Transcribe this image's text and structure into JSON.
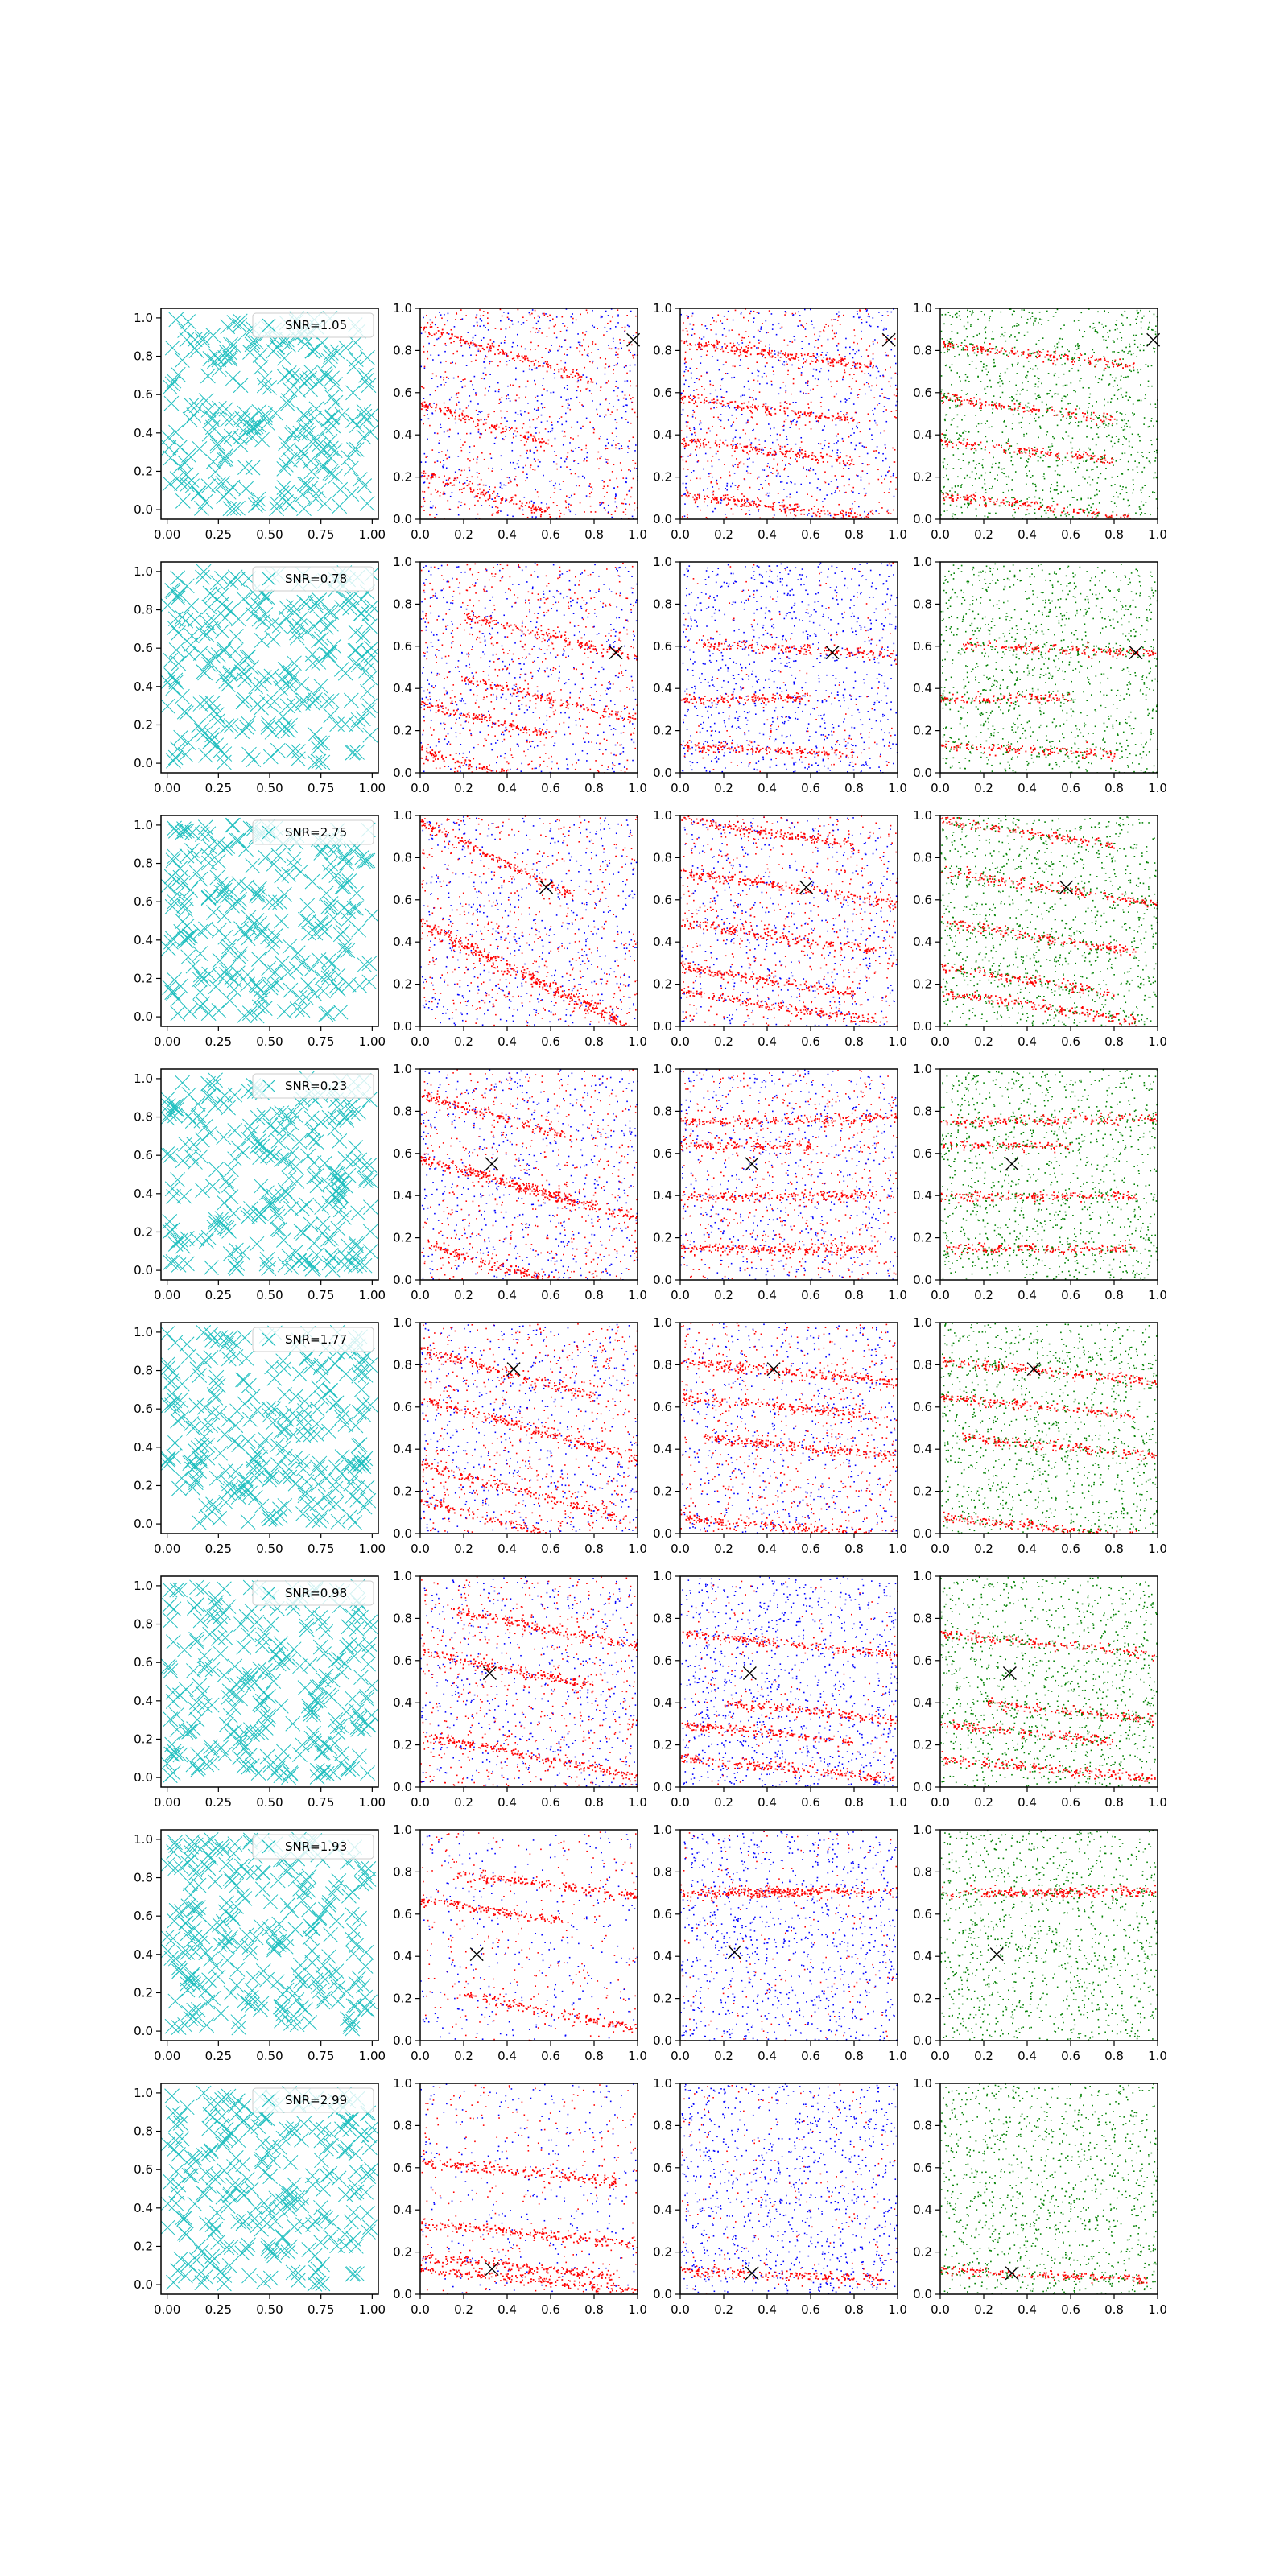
{
  "figure": {
    "rows": 8,
    "cols": 4,
    "grid": false,
    "colors": {
      "cross": "#1fbfbf",
      "red": "#ff0000",
      "blue": "#0000ff",
      "green": "#008000",
      "marker": "#000000",
      "axes": "#000000"
    }
  },
  "chart_data": [
    {
      "type": "scatter",
      "panel": "random-cross-markers",
      "xlim": [
        -0.03,
        1.03
      ],
      "ylim": [
        -0.05,
        1.05
      ],
      "xticks": [
        "0.00",
        "0.25",
        "0.50",
        "0.75",
        "1.00"
      ],
      "yticks": [
        "0.0",
        "0.2",
        "0.4",
        "0.6",
        "0.8",
        "1.0"
      ],
      "legend_location": "upper right",
      "legends": [
        "SNR=1.05",
        "SNR=0.78",
        "SNR=2.75",
        "SNR=0.23",
        "SNR=1.77",
        "SNR=0.98",
        "SNR=1.93",
        "SNR=2.99"
      ]
    },
    {
      "type": "scatter",
      "panel": "red-blue-points",
      "xlim": [
        0,
        1
      ],
      "ylim": [
        0,
        1
      ],
      "xticks": [
        "0.0",
        "0.2",
        "0.4",
        "0.6",
        "0.8",
        "1.0"
      ],
      "yticks": [
        "0.0",
        "0.2",
        "0.4",
        "0.6",
        "0.8",
        "1.0"
      ]
    },
    {
      "type": "scatter",
      "panel": "red-blue-points",
      "xlim": [
        0,
        1
      ],
      "ylim": [
        0,
        1
      ],
      "xticks": [
        "0.0",
        "0.2",
        "0.4",
        "0.6",
        "0.8",
        "1.0"
      ],
      "yticks": [
        "0.0",
        "0.2",
        "0.4",
        "0.6",
        "0.8",
        "1.0"
      ]
    },
    {
      "type": "scatter",
      "panel": "red-green-points",
      "xlim": [
        0,
        1
      ],
      "ylim": [
        0,
        1
      ],
      "xticks": [
        "0.0",
        "0.2",
        "0.4",
        "0.6",
        "0.8",
        "1.0"
      ],
      "yticks": [
        "0.0",
        "0.2",
        "0.4",
        "0.6",
        "0.8",
        "1.0"
      ]
    }
  ],
  "rows": [
    {
      "x_marker": [
        [
          0.98,
          0.85
        ],
        [
          0.96,
          0.85
        ],
        [
          0.98,
          0.85
        ]
      ],
      "bands_col2": [
        [
          0.2,
          0.85,
          -0.32
        ],
        [
          0.0,
          0.55,
          -0.32
        ],
        [
          0.0,
          0.22,
          -0.32
        ]
      ],
      "bands_col3": [
        [
          0.3,
          0.8,
          -0.12
        ],
        [
          0.2,
          0.55,
          -0.12
        ],
        [
          0.2,
          0.35,
          -0.12
        ],
        [
          0.3,
          0.08,
          -0.12
        ]
      ],
      "bg_col2": "mixed",
      "bg_col3": "mixed"
    },
    {
      "x_marker": [
        [
          0.9,
          0.57
        ],
        [
          0.7,
          0.57
        ],
        [
          0.9,
          0.57
        ]
      ],
      "bands_col2": [
        [
          0.0,
          0.33,
          -0.25
        ],
        [
          0.0,
          0.1,
          -0.25
        ],
        [
          0.8,
          0.6,
          -0.25
        ],
        [
          0.8,
          0.3,
          -0.25
        ]
      ],
      "bands_col3": [
        [
          0.0,
          0.35,
          0.02
        ],
        [
          0.7,
          0.58,
          -0.05
        ],
        [
          0.2,
          0.12,
          -0.05
        ]
      ],
      "bg_col2": "mixed",
      "bg_col3": "blue"
    },
    {
      "x_marker": [
        [
          0.58,
          0.66
        ],
        [
          0.58,
          0.66
        ],
        [
          0.58,
          0.66
        ]
      ],
      "bands_col2": [
        [
          0.1,
          0.92,
          -0.5
        ],
        [
          0.3,
          0.35,
          -0.5
        ],
        [
          0.55,
          0.2,
          -0.5
        ]
      ],
      "bands_col3": [
        [
          0.2,
          0.95,
          -0.15
        ],
        [
          0.5,
          0.66,
          -0.15
        ],
        [
          0.3,
          0.45,
          -0.15
        ],
        [
          0.2,
          0.25,
          -0.15
        ],
        [
          0.3,
          0.12,
          -0.15
        ]
      ],
      "bg_col2": "mixed",
      "bg_col3": "mixed"
    },
    {
      "x_marker": [
        [
          0.33,
          0.55
        ],
        [
          0.33,
          0.55
        ],
        [
          0.33,
          0.55
        ]
      ],
      "bands_col2": [
        [
          0.1,
          0.85,
          -0.3
        ],
        [
          0.1,
          0.55,
          -0.3
        ],
        [
          0.1,
          0.15,
          -0.3
        ],
        [
          0.8,
          0.35,
          -0.3
        ]
      ],
      "bands_col3": [
        [
          0.0,
          0.64,
          0.0
        ],
        [
          0.5,
          0.76,
          0.02
        ],
        [
          0.3,
          0.4,
          0.0
        ],
        [
          0.3,
          0.15,
          0.0
        ]
      ],
      "bg_col2": "mixed",
      "bg_col3": "mixed"
    },
    {
      "x_marker": [
        [
          0.43,
          0.78
        ],
        [
          0.43,
          0.78
        ],
        [
          0.43,
          0.78
        ]
      ],
      "bands_col2": [
        [
          0.2,
          0.82,
          -0.28
        ],
        [
          0.5,
          0.5,
          -0.28
        ],
        [
          0.3,
          0.25,
          -0.28
        ],
        [
          0.3,
          0.08,
          -0.28
        ]
      ],
      "bands_col3": [
        [
          0.4,
          0.78,
          -0.1
        ],
        [
          0.7,
          0.4,
          -0.1
        ],
        [
          0.3,
          0.62,
          -0.1
        ],
        [
          0.3,
          0.05,
          -0.1
        ]
      ],
      "bg_col2": "mixed",
      "bg_col3": "mixed"
    },
    {
      "x_marker": [
        [
          0.32,
          0.54
        ],
        [
          0.32,
          0.54
        ],
        [
          0.32,
          0.54
        ]
      ],
      "bands_col2": [
        [
          0.75,
          0.72,
          -0.2
        ],
        [
          0.2,
          0.6,
          -0.2
        ],
        [
          0.5,
          0.15,
          -0.2
        ]
      ],
      "bands_col3": [
        [
          0.2,
          0.28,
          -0.1
        ],
        [
          0.8,
          0.34,
          -0.1
        ],
        [
          0.5,
          0.68,
          -0.1
        ],
        [
          0.4,
          0.1,
          -0.1
        ]
      ],
      "bg_col2": "mixed",
      "bg_col3": "blue"
    },
    {
      "x_marker": [
        [
          0.26,
          0.41
        ],
        [
          0.25,
          0.42
        ],
        [
          0.26,
          0.41
        ]
      ],
      "bands_col2": [
        [
          0.05,
          0.66,
          -0.15
        ],
        [
          0.75,
          0.72,
          -0.12
        ],
        [
          0.8,
          0.1,
          -0.2
        ]
      ],
      "bands_col3": [
        [
          0.05,
          0.7,
          0.0
        ],
        [
          0.8,
          0.71,
          0.0
        ]
      ],
      "bg_col2": "sparse-mixed",
      "bg_col3": "blue"
    },
    {
      "x_marker": [
        [
          0.33,
          0.12
        ],
        [
          0.33,
          0.1
        ],
        [
          0.33,
          0.1
        ]
      ],
      "bands_col2": [
        [
          0.6,
          0.06,
          -0.1
        ],
        [
          0.3,
          0.15,
          -0.1
        ],
        [
          0.4,
          0.3,
          -0.1
        ],
        [
          0.3,
          0.6,
          -0.1
        ]
      ],
      "bands_col3": [
        [
          0.35,
          0.1,
          -0.05
        ]
      ],
      "bg_col2": "sparse-mixed",
      "bg_col3": "blue"
    }
  ]
}
